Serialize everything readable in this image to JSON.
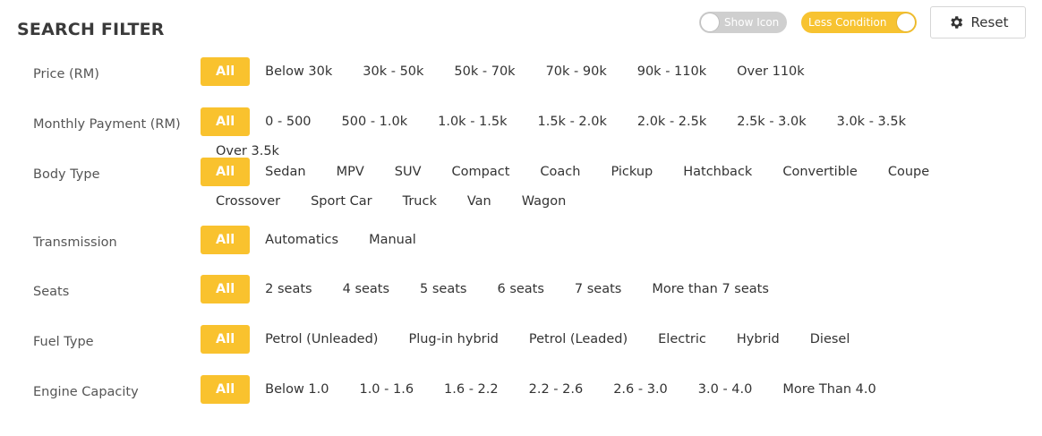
{
  "header": {
    "title": "SEARCH FILTER",
    "show_icon_label": "Show Icon",
    "less_condition_label": "Less Condition",
    "reset_label": "Reset"
  },
  "colors": {
    "accent": "#f9c22e",
    "toggle_off": "#cfcfcf"
  },
  "filters": [
    {
      "label": "Price (RM)",
      "options": [
        "All",
        "Below 30k",
        "30k - 50k",
        "50k - 70k",
        "70k - 90k",
        "90k - 110k",
        "Over 110k"
      ]
    },
    {
      "label": "Monthly Payment (RM)",
      "options": [
        "All",
        "0 - 500",
        "500 - 1.0k",
        "1.0k - 1.5k",
        "1.5k - 2.0k",
        "2.0k - 2.5k",
        "2.5k - 3.0k",
        "3.0k - 3.5k",
        "Over 3.5k"
      ]
    },
    {
      "label": "Body Type",
      "options": [
        "All",
        "Sedan",
        "MPV",
        "SUV",
        "Compact",
        "Coach",
        "Pickup",
        "Hatchback",
        "Convertible",
        "Coupe",
        "Crossover",
        "Sport Car",
        "Truck",
        "Van",
        "Wagon"
      ]
    },
    {
      "label": "Transmission",
      "options": [
        "All",
        "Automatics",
        "Manual"
      ]
    },
    {
      "label": "Seats",
      "options": [
        "All",
        "2 seats",
        "4 seats",
        "5 seats",
        "6 seats",
        "7 seats",
        "More than 7 seats"
      ]
    },
    {
      "label": "Fuel Type",
      "options": [
        "All",
        "Petrol (Unleaded)",
        "Plug-in hybrid",
        "Petrol (Leaded)",
        "Electric",
        "Hybrid",
        "Diesel"
      ]
    },
    {
      "label": "Engine Capacity",
      "options": [
        "All",
        "Below 1.0",
        "1.0 - 1.6",
        "1.6 - 2.2",
        "2.2 - 2.6",
        "2.6 - 3.0",
        "3.0 - 4.0",
        "More Than 4.0"
      ]
    }
  ]
}
